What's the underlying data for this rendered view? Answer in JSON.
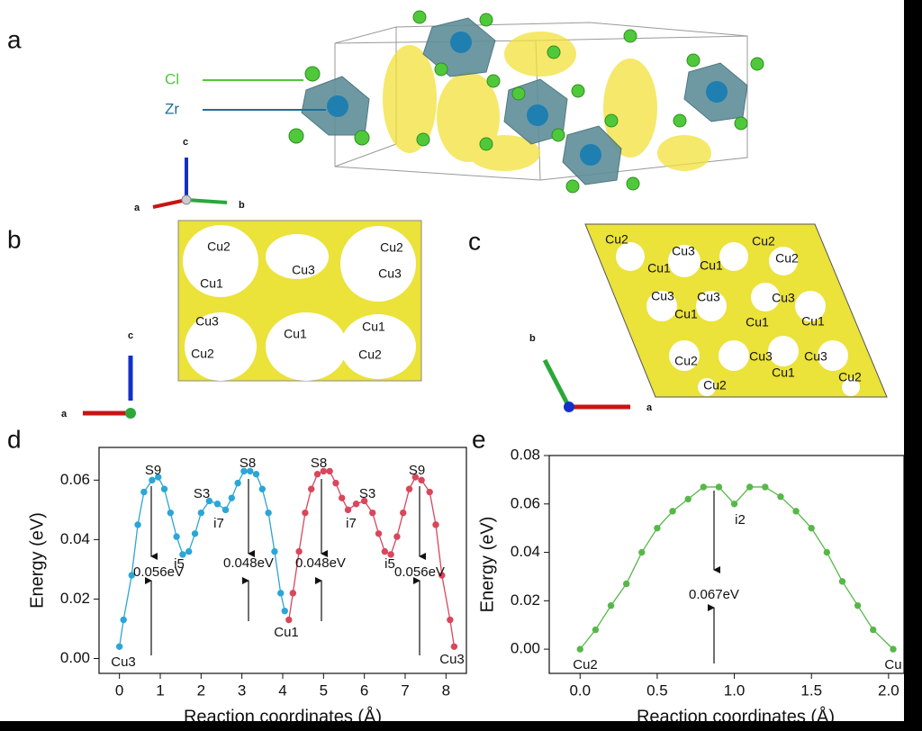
{
  "panel_a": {
    "label": "a",
    "legend": [
      "Cl",
      "Zr"
    ],
    "axes": [
      "c",
      "a",
      "b"
    ]
  },
  "panel_b": {
    "label": "b",
    "sites": [
      "Cu2",
      "Cu2",
      "Cu3",
      "Cu3",
      "Cu1",
      "Cu3",
      "Cu1",
      "Cu1",
      "Cu2",
      "Cu2"
    ],
    "axes": [
      "c",
      "a"
    ]
  },
  "panel_c": {
    "label": "c",
    "sites": [
      "Cu2",
      "Cu3",
      "Cu2",
      "Cu1",
      "Cu1",
      "Cu2",
      "Cu3",
      "Cu3",
      "Cu3",
      "Cu1",
      "Cu1",
      "Cu1",
      "Cu2",
      "Cu3",
      "Cu3",
      "Cu1",
      "Cu2",
      "Cu2"
    ],
    "axes": [
      "b",
      "a"
    ]
  },
  "chart_data": [
    {
      "type": "line",
      "panel": "d",
      "x_label": "Reaction coordinates (Å)",
      "y_label": "Energy (eV)",
      "xlim": [
        -0.5,
        8.5
      ],
      "ylim": [
        -0.005,
        0.071
      ],
      "xticks": [
        0,
        1,
        2,
        3,
        4,
        5,
        6,
        7,
        8
      ],
      "yticks": [
        {
          "value": 0,
          "label": "0.00"
        },
        0.02,
        0.04,
        0.06
      ],
      "series": [
        {
          "color": "#2ba6d6",
          "x": [
            0,
            0.1,
            0.3,
            0.45,
            0.6,
            0.8,
            0.95,
            1.1,
            1.25,
            1.4,
            1.55,
            1.7,
            1.85,
            2.0,
            2.2,
            2.4,
            2.6,
            2.75,
            2.9,
            3.05,
            3.2,
            3.35,
            3.5,
            3.65,
            3.8,
            3.95,
            4.05
          ],
          "values": [
            0.004,
            0.013,
            0.028,
            0.045,
            0.056,
            0.06,
            0.061,
            0.057,
            0.049,
            0.041,
            0.035,
            0.036,
            0.042,
            0.049,
            0.053,
            0.052,
            0.05,
            0.054,
            0.059,
            0.063,
            0.063,
            0.062,
            0.057,
            0.049,
            0.036,
            0.022,
            0.016
          ]
        },
        {
          "color": "#d8475b",
          "x": [
            4.15,
            4.25,
            4.4,
            4.55,
            4.7,
            4.85,
            5.0,
            5.15,
            5.3,
            5.45,
            5.6,
            5.8,
            6.0,
            6.2,
            6.35,
            6.5,
            6.65,
            6.8,
            6.95,
            7.1,
            7.25,
            7.4,
            7.6,
            7.75,
            7.9,
            8.1,
            8.2
          ],
          "values": [
            0.013,
            0.022,
            0.036,
            0.049,
            0.057,
            0.062,
            0.063,
            0.063,
            0.059,
            0.054,
            0.05,
            0.052,
            0.053,
            0.049,
            0.042,
            0.036,
            0.035,
            0.041,
            0.049,
            0.057,
            0.061,
            0.06,
            0.056,
            0.045,
            0.028,
            0.013,
            0.004
          ]
        }
      ],
      "annotations": [
        "S9",
        "S3",
        "i5",
        "i7",
        "S8",
        "0.056eV",
        "0.048eV",
        "Cu3",
        "Cu1",
        "Cu3",
        "S8",
        "S3",
        "i7",
        "i5",
        "S9",
        "0.048eV",
        "0.056eV"
      ]
    },
    {
      "type": "line",
      "panel": "e",
      "x_label": "Reaction coordinates (Å)",
      "y_label": "Energy (eV)",
      "xlim": [
        -0.2,
        2.1
      ],
      "ylim": [
        -0.01,
        0.08
      ],
      "xticks": [
        {
          "value": 0,
          "label": "0.0"
        },
        0.5,
        {
          "value": 1,
          "label": "1.0"
        },
        1.5,
        {
          "value": 2,
          "label": "2.0"
        }
      ],
      "yticks": [
        {
          "value": 0,
          "label": "0.00"
        },
        0.02,
        0.04,
        0.06,
        0.08
      ],
      "series": [
        {
          "color": "#56b848",
          "x": [
            0,
            0.1,
            0.2,
            0.3,
            0.4,
            0.5,
            0.6,
            0.7,
            0.8,
            0.9,
            1.0,
            1.1,
            1.2,
            1.3,
            1.4,
            1.5,
            1.6,
            1.7,
            1.8,
            1.9,
            2.03
          ],
          "values": [
            0,
            0.008,
            0.018,
            0.027,
            0.04,
            0.05,
            0.057,
            0.062,
            0.067,
            0.067,
            0.06,
            0.067,
            0.067,
            0.063,
            0.057,
            0.05,
            0.04,
            0.028,
            0.018,
            0.008,
            0
          ]
        }
      ],
      "annotations": [
        "i2",
        "0.067eV",
        "Cu2",
        "Cu"
      ]
    }
  ]
}
